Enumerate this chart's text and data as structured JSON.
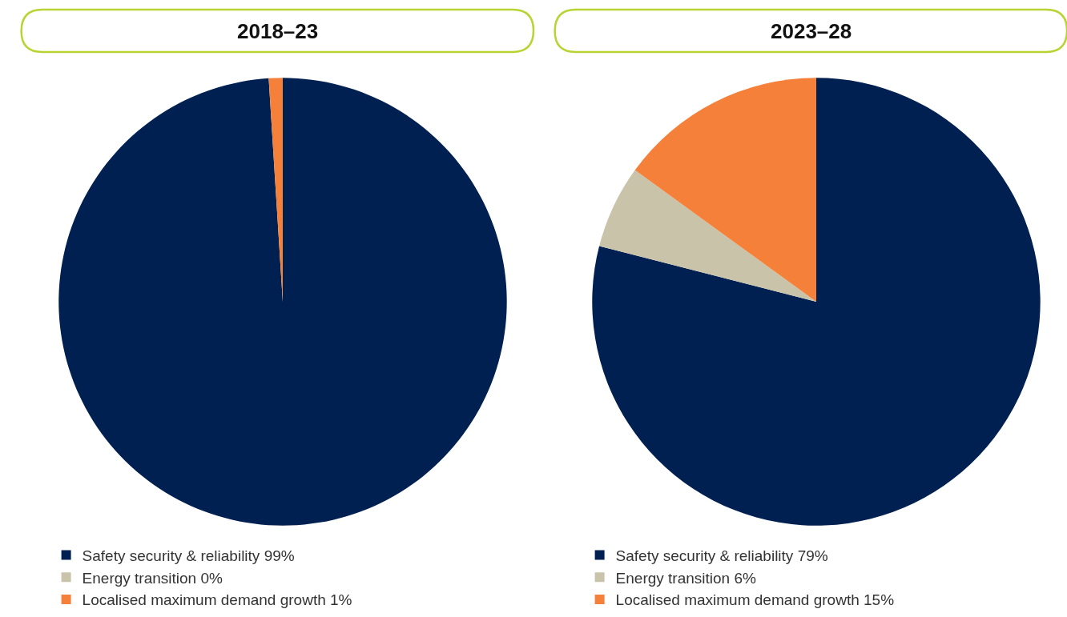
{
  "chart_data": [
    {
      "type": "pie",
      "title": "2018–23",
      "categories": [
        "Safety security & reliability 99%",
        "Energy transition 0%",
        "Localised maximum demand growth 1%"
      ],
      "values": [
        99,
        0,
        1
      ],
      "colors": [
        "#002052",
        "#c9c3aa",
        "#f4803a"
      ],
      "legend": "bottom"
    },
    {
      "type": "pie",
      "title": "2023–28",
      "categories": [
        "Safety security & reliability 79%",
        "Energy transition 6%",
        "Localised maximum demand growth 15%"
      ],
      "values": [
        79,
        6,
        15
      ],
      "colors": [
        "#002052",
        "#c9c3aa",
        "#f4803a"
      ],
      "legend": "bottom"
    }
  ]
}
